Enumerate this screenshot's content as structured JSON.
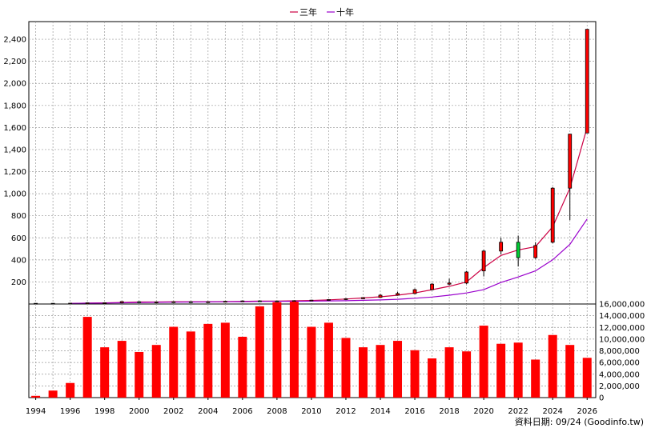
{
  "legend": [
    {
      "label": "三年",
      "color": "#cc0044"
    },
    {
      "label": "十年",
      "color": "#9900cc"
    }
  ],
  "footer": "資料日期: 09/24 (Goodinfo.tw)",
  "chart_data": [
    {
      "type": "candlestick",
      "x_range": [
        1993.6,
        2026.5
      ],
      "ylim": [
        0,
        2560
      ],
      "yticks": [
        200,
        400,
        600,
        800,
        1000,
        1200,
        1400,
        1600,
        1800,
        2000,
        2200,
        2400
      ],
      "ytick_labels": [
        "200",
        "400",
        "600",
        "800",
        "1,000",
        "1,200",
        "1,400",
        "1,600",
        "1,800",
        "2,000",
        "2,200",
        "2,400"
      ],
      "grid": true,
      "legend_position": "top-center",
      "candles": [
        {
          "x": 1994.0,
          "open": 6,
          "close": 6,
          "high": 7,
          "low": 5
        },
        {
          "x": 1995.0,
          "open": 6,
          "close": 6,
          "high": 7,
          "low": 5
        },
        {
          "x": 1996.0,
          "open": 6,
          "close": 7,
          "high": 8,
          "low": 5
        },
        {
          "x": 1997.0,
          "open": 8,
          "close": 10,
          "high": 12,
          "low": 7
        },
        {
          "x": 1998.0,
          "open": 10,
          "close": 11,
          "high": 14,
          "low": 9
        },
        {
          "x": 1999.0,
          "open": 12,
          "close": 22,
          "high": 25,
          "low": 11
        },
        {
          "x": 2000.0,
          "open": 20,
          "close": 15,
          "high": 25,
          "low": 13
        },
        {
          "x": 2001.0,
          "open": 16,
          "close": 18,
          "high": 22,
          "low": 13
        },
        {
          "x": 2002.0,
          "open": 18,
          "close": 20,
          "high": 24,
          "low": 16
        },
        {
          "x": 2003.0,
          "open": 20,
          "close": 18,
          "high": 22,
          "low": 15
        },
        {
          "x": 2004.0,
          "open": 18,
          "close": 20,
          "high": 23,
          "low": 16
        },
        {
          "x": 2005.0,
          "open": 20,
          "close": 24,
          "high": 26,
          "low": 18
        },
        {
          "x": 2006.0,
          "open": 24,
          "close": 28,
          "high": 31,
          "low": 22
        },
        {
          "x": 2007.0,
          "open": 28,
          "close": 27,
          "high": 32,
          "low": 25
        },
        {
          "x": 2008.0,
          "open": 27,
          "close": 24,
          "high": 29,
          "low": 21
        },
        {
          "x": 2009.0,
          "open": 24,
          "close": 30,
          "high": 33,
          "low": 22
        },
        {
          "x": 2010.0,
          "open": 30,
          "close": 35,
          "high": 38,
          "low": 28
        },
        {
          "x": 2011.0,
          "open": 35,
          "close": 40,
          "high": 44,
          "low": 32
        },
        {
          "x": 2012.0,
          "open": 40,
          "close": 48,
          "high": 52,
          "low": 37
        },
        {
          "x": 2013.0,
          "open": 48,
          "close": 58,
          "high": 62,
          "low": 45
        },
        {
          "x": 2014.0,
          "open": 60,
          "close": 80,
          "high": 90,
          "low": 56
        },
        {
          "x": 2015.0,
          "open": 80,
          "close": 95,
          "high": 110,
          "low": 75
        },
        {
          "x": 2016.0,
          "open": 95,
          "close": 130,
          "high": 140,
          "low": 90
        },
        {
          "x": 2017.0,
          "open": 130,
          "close": 180,
          "high": 190,
          "low": 125
        },
        {
          "x": 2018.0,
          "open": 180,
          "close": 190,
          "high": 230,
          "low": 170
        },
        {
          "x": 2019.0,
          "open": 190,
          "close": 290,
          "high": 300,
          "low": 180
        },
        {
          "x": 2020.0,
          "open": 300,
          "close": 480,
          "high": 490,
          "low": 250
        },
        {
          "x": 2021.0,
          "open": 480,
          "close": 560,
          "high": 600,
          "low": 450
        },
        {
          "x": 2022.0,
          "open": 560,
          "close": 420,
          "high": 620,
          "low": 340
        },
        {
          "x": 2023.0,
          "open": 420,
          "close": 530,
          "high": 560,
          "low": 410
        },
        {
          "x": 2024.0,
          "open": 560,
          "close": 1050,
          "high": 1060,
          "low": 550
        },
        {
          "x": 2025.0,
          "open": 1050,
          "close": 1540,
          "high": 1540,
          "low": 760
        },
        {
          "x": 2026.0,
          "open": 1550,
          "close": 2490,
          "high": 2490,
          "low": 1550
        }
      ],
      "series": [
        {
          "name": "三年",
          "color": "#cc0044",
          "x": [
            1996,
            1997,
            1998,
            1999,
            2000,
            2001,
            2002,
            2003,
            2004,
            2005,
            2006,
            2007,
            2008,
            2009,
            2010,
            2011,
            2012,
            2013,
            2014,
            2015,
            2016,
            2017,
            2018,
            2019,
            2020,
            2021,
            2022,
            2023,
            2024,
            2025,
            2026
          ],
          "values": [
            5,
            8,
            10,
            14,
            18,
            18,
            20,
            20,
            20,
            22,
            24,
            26,
            27,
            29,
            32,
            38,
            45,
            55,
            65,
            80,
            100,
            130,
            160,
            200,
            330,
            440,
            490,
            520,
            700,
            1050,
            1600
          ]
        },
        {
          "name": "十年",
          "color": "#9900cc",
          "x": [
            1996,
            1997,
            1998,
            1999,
            2000,
            2001,
            2002,
            2003,
            2004,
            2005,
            2006,
            2007,
            2008,
            2009,
            2010,
            2011,
            2012,
            2013,
            2014,
            2015,
            2016,
            2017,
            2018,
            2019,
            2020,
            2021,
            2022,
            2023,
            2024,
            2025,
            2026
          ],
          "values": [
            5,
            7,
            9,
            11,
            13,
            15,
            17,
            18,
            19,
            20,
            21,
            23,
            24,
            25,
            26,
            28,
            30,
            33,
            37,
            43,
            52,
            63,
            80,
            100,
            130,
            195,
            245,
            300,
            400,
            540,
            770
          ]
        }
      ]
    },
    {
      "type": "bar",
      "x_range": [
        1993.6,
        2026.5
      ],
      "ylim": [
        0,
        16000000
      ],
      "yticks": [
        0,
        2000000,
        4000000,
        6000000,
        8000000,
        10000000,
        12000000,
        14000000,
        16000000
      ],
      "ytick_labels": [
        "0",
        "2,000,000",
        "4,000,000",
        "6,000,000",
        "8,000,000",
        "10,000,000",
        "12,000,000",
        "14,000,000",
        "16,000,000"
      ],
      "xticks": [
        1994,
        1996,
        1998,
        2000,
        2002,
        2004,
        2006,
        2008,
        2010,
        2012,
        2014,
        2016,
        2018,
        2020,
        2022,
        2024,
        2026
      ],
      "xtick_labels": [
        "1994",
        "1996",
        "1998",
        "2000",
        "2002",
        "2004",
        "2006",
        "2008",
        "2010",
        "2012",
        "2014",
        "2016",
        "2018",
        "2020",
        "2022",
        "2024",
        "2026"
      ],
      "grid": true,
      "color": "#ff0000",
      "x": [
        1994,
        1995,
        1996,
        1997,
        1998,
        1999,
        2000,
        2001,
        2002,
        2003,
        2004,
        2005,
        2006,
        2007,
        2008,
        2009,
        2010,
        2011,
        2012,
        2013,
        2014,
        2015,
        2016,
        2017,
        2018,
        2019,
        2020,
        2021,
        2022,
        2023,
        2024,
        2025,
        2026
      ],
      "values": [
        300000,
        1200000,
        2500000,
        13800000,
        8600000,
        9700000,
        7800000,
        9000000,
        12100000,
        11300000,
        12600000,
        12800000,
        10400000,
        15600000,
        16300000,
        16400000,
        12100000,
        12800000,
        10200000,
        8600000,
        9000000,
        9700000,
        8100000,
        6700000,
        8600000,
        7900000,
        12300000,
        9200000,
        9400000,
        6500000,
        10700000,
        9000000,
        6800000
      ]
    }
  ]
}
